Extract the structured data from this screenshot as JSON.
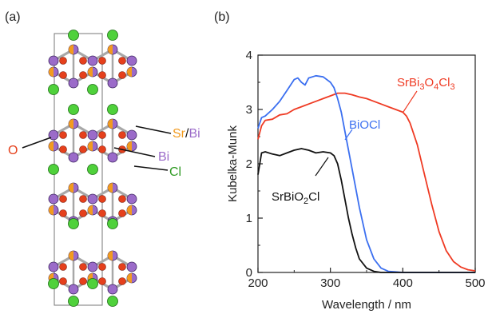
{
  "panels": {
    "a_label": "(a)",
    "b_label": "(b)"
  },
  "structure": {
    "labels": {
      "sr": "Sr",
      "slash": "/",
      "bi1": "Bi",
      "bi2": "Bi",
      "o": "O",
      "cl": "Cl"
    },
    "colors": {
      "sr": "#f29b1f",
      "bi": "#9b6bc9",
      "o": "#e5401c",
      "cl": "#4fd13b",
      "bond": "#a8a8a8",
      "cell": "#777777"
    }
  },
  "chart_data": {
    "type": "line",
    "xlabel": "Wavelength / nm",
    "ylabel": "Kubelka-Munk",
    "xlim": [
      200,
      500
    ],
    "ylim": [
      0,
      4
    ],
    "xticks": [
      200,
      300,
      400,
      500
    ],
    "yticks": [
      0,
      1,
      2,
      3,
      4
    ],
    "series": [
      {
        "name": "SrBi3O4Cl3",
        "color": "#ef3b24",
        "x": [
          200,
          205,
          210,
          220,
          230,
          240,
          250,
          260,
          270,
          280,
          290,
          300,
          310,
          320,
          330,
          340,
          350,
          360,
          370,
          380,
          390,
          400,
          405,
          410,
          420,
          430,
          440,
          450,
          460,
          470,
          480,
          490,
          500
        ],
        "y": [
          2.45,
          2.7,
          2.8,
          2.82,
          2.9,
          2.92,
          3.0,
          3.05,
          3.1,
          3.15,
          3.2,
          3.25,
          3.3,
          3.3,
          3.27,
          3.23,
          3.2,
          3.15,
          3.1,
          3.05,
          3.0,
          2.95,
          2.88,
          2.75,
          2.35,
          1.8,
          1.25,
          0.75,
          0.4,
          0.2,
          0.1,
          0.05,
          0.03
        ]
      },
      {
        "name": "BiOCl",
        "color": "#3b6ff0",
        "x": [
          200,
          205,
          210,
          220,
          230,
          240,
          250,
          255,
          260,
          265,
          270,
          280,
          290,
          300,
          305,
          310,
          315,
          320,
          330,
          340,
          350,
          360,
          370,
          380,
          390,
          400,
          420,
          450,
          500
        ],
        "y": [
          2.65,
          2.85,
          2.88,
          3.0,
          3.15,
          3.35,
          3.55,
          3.58,
          3.5,
          3.45,
          3.58,
          3.62,
          3.6,
          3.5,
          3.4,
          3.2,
          2.95,
          2.6,
          1.9,
          1.2,
          0.6,
          0.25,
          0.08,
          0.02,
          0.01,
          0.0,
          0.0,
          0.0,
          0.0
        ]
      },
      {
        "name": "SrBiO2Cl",
        "color": "#111111",
        "x": [
          200,
          205,
          210,
          220,
          230,
          240,
          250,
          260,
          270,
          280,
          290,
          300,
          305,
          310,
          315,
          320,
          325,
          330,
          335,
          340,
          350,
          360,
          370,
          400,
          450,
          500
        ],
        "y": [
          1.8,
          2.2,
          2.22,
          2.18,
          2.15,
          2.2,
          2.25,
          2.28,
          2.25,
          2.2,
          2.22,
          2.2,
          2.15,
          2.0,
          1.7,
          1.35,
          1.0,
          0.7,
          0.45,
          0.25,
          0.08,
          0.02,
          0.0,
          0.0,
          0.0,
          0.0
        ]
      }
    ],
    "series_labels": {
      "srbi3": {
        "parts": [
          "SrBi",
          "3",
          "O",
          "4",
          "Cl",
          "3"
        ]
      },
      "biocl": {
        "text": "BiOCl"
      },
      "srbio2": {
        "parts": [
          "SrBiO",
          "2",
          "Cl"
        ]
      }
    }
  }
}
